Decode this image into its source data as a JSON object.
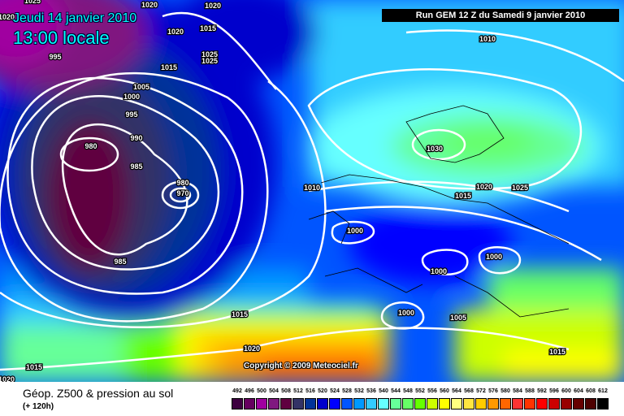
{
  "header": {
    "date": "Jeudi 14 janvier 2010",
    "time": "13:00 locale",
    "run": "Run GEM 12 Z du Samedi 9 janvier 2010"
  },
  "copyright": "Copyright © 2009 Meteociel.fr",
  "footer": {
    "title": "Géop. Z500 & pression au sol",
    "subtitle": "(+ 120h)"
  },
  "legend": {
    "labels": [
      "492",
      "496",
      "500",
      "504",
      "508",
      "512",
      "516",
      "520",
      "524",
      "528",
      "532",
      "536",
      "540",
      "544",
      "548",
      "552",
      "556",
      "560",
      "564",
      "568",
      "572",
      "576",
      "580",
      "584",
      "588",
      "592",
      "596",
      "600",
      "604",
      "608",
      "612"
    ],
    "colors": [
      "#3d0040",
      "#66005f",
      "#a000a0",
      "#801880",
      "#600040",
      "#333366",
      "#003399",
      "#0000cc",
      "#0000ff",
      "#0055ff",
      "#0099ff",
      "#33ccff",
      "#66ffff",
      "#66ff99",
      "#66ff66",
      "#66ff00",
      "#ccff00",
      "#ffff00",
      "#ffff80",
      "#ffe640",
      "#ffcc00",
      "#ff9900",
      "#ff6600",
      "#ff3333",
      "#ff3300",
      "#ff0000",
      "#cc0000",
      "#990000",
      "#660000",
      "#4d0000",
      "#000000"
    ]
  },
  "isobar_labels": [
    "1025",
    "1020",
    "1020",
    "1015",
    "1020",
    "1025",
    "1025",
    "1015",
    "995",
    "1005",
    "1000",
    "995",
    "990",
    "980",
    "985",
    "980",
    "970",
    "985",
    "1010",
    "1030",
    "1015",
    "1020",
    "1025",
    "1010",
    "1000",
    "1000",
    "1000",
    "1000",
    "1005",
    "1015",
    "1015",
    "1020",
    "1015",
    "1020",
    "1020"
  ]
}
